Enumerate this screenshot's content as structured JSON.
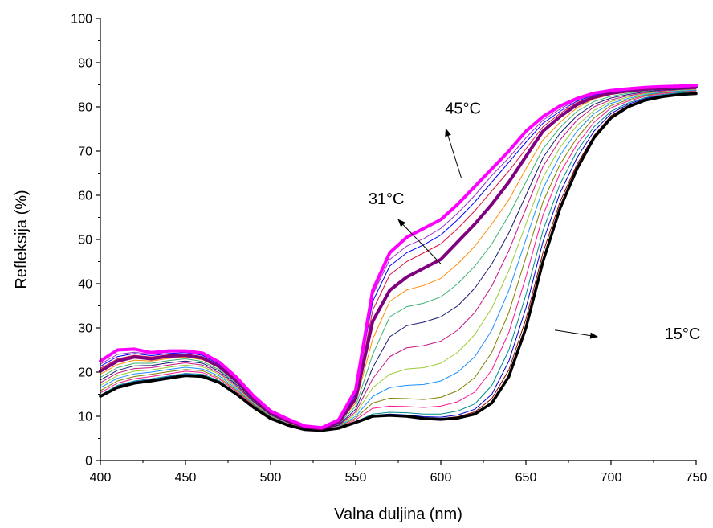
{
  "chart_data": {
    "type": "line",
    "xlabel": "Valna duljina (nm)",
    "ylabel": "Refleksija (%)",
    "xlim": [
      400,
      750
    ],
    "ylim": [
      0,
      100
    ],
    "xticks": [
      400,
      450,
      500,
      550,
      600,
      650,
      700,
      750
    ],
    "yticks": [
      0,
      10,
      20,
      30,
      40,
      50,
      60,
      70,
      80,
      90,
      100
    ],
    "grid": false,
    "legend": "none",
    "annotations": [
      {
        "text": "45°C",
        "x": 613,
        "y": 78.5,
        "arrow_from": [
          612,
          64
        ],
        "arrow_to": [
          603,
          75
        ]
      },
      {
        "text": "31°C",
        "x": 568,
        "y": 58,
        "arrow_from": [
          600,
          44.5
        ],
        "arrow_to": [
          575,
          54.5
        ]
      },
      {
        "text": "15°C",
        "x": 742,
        "y": 27.5,
        "arrow_from": [
          667,
          29.5
        ],
        "arrow_to": [
          692,
          28
        ]
      }
    ],
    "x": [
      400,
      410,
      420,
      430,
      440,
      450,
      460,
      470,
      480,
      490,
      500,
      510,
      520,
      530,
      540,
      550,
      560,
      570,
      580,
      590,
      600,
      610,
      620,
      630,
      640,
      650,
      660,
      670,
      680,
      690,
      700,
      710,
      720,
      730,
      740,
      750
    ],
    "series": [
      {
        "color": "#000000",
        "width": 3.5,
        "values": [
          14.5,
          16.5,
          17.5,
          18,
          18.6,
          19.2,
          19,
          17.6,
          15,
          12,
          9.5,
          8,
          7,
          6.8,
          7.3,
          8.6,
          10,
          10.2,
          10,
          9.5,
          9.3,
          9.6,
          10.5,
          13,
          19,
          30,
          45,
          57,
          66,
          73,
          77.5,
          80,
          81.5,
          82.3,
          82.8,
          83
        ]
      },
      {
        "color": "#8B0000",
        "width": 1,
        "values": [
          14.5,
          16.6,
          17.6,
          18.1,
          18.7,
          19.3,
          19.1,
          17.6,
          15,
          12,
          9.5,
          8,
          7,
          6.8,
          7.3,
          8.6,
          10,
          10.3,
          10.1,
          9.7,
          9.5,
          9.9,
          11,
          14,
          20.5,
          32,
          47,
          58.5,
          67,
          73.5,
          78,
          80.3,
          81.7,
          82.5,
          82.9,
          83.1
        ]
      },
      {
        "color": "#0000CD",
        "width": 1,
        "values": [
          14.6,
          16.8,
          17.8,
          18.3,
          18.9,
          19.5,
          19.3,
          17.8,
          15.2,
          12.1,
          9.6,
          8.1,
          7.1,
          6.8,
          7.3,
          8.7,
          10.2,
          10.5,
          10.3,
          9.9,
          9.8,
          10.3,
          11.6,
          15,
          22.5,
          34.5,
          49.5,
          60.5,
          68.5,
          74.5,
          78.5,
          80.6,
          81.9,
          82.6,
          83,
          83.2
        ]
      },
      {
        "color": "#008B8B",
        "width": 1,
        "values": [
          14.8,
          17,
          18,
          18.5,
          19.1,
          19.7,
          19.5,
          18,
          15.3,
          12.2,
          9.6,
          8.1,
          7.1,
          6.8,
          7.4,
          8.8,
          10.5,
          10.9,
          10.8,
          10.5,
          10.5,
          11.2,
          12.8,
          17,
          25,
          37.5,
          52,
          62.5,
          70,
          75.5,
          79,
          80.9,
          82.1,
          82.8,
          83.2,
          83.4
        ]
      },
      {
        "color": "#FF1493",
        "width": 1,
        "values": [
          15.3,
          17.5,
          18.5,
          19,
          19.6,
          20.2,
          19.9,
          18.4,
          15.6,
          12.4,
          9.8,
          8.2,
          7.2,
          6.9,
          7.5,
          9.2,
          11.8,
          12.3,
          12.2,
          12,
          12.3,
          13.3,
          15.5,
          20.5,
          29,
          41.5,
          55.5,
          65,
          71.5,
          76.5,
          79.8,
          81.3,
          82.4,
          83,
          83.4,
          83.6
        ]
      },
      {
        "color": "#808000",
        "width": 1,
        "values": [
          15.8,
          18,
          19,
          19.5,
          20.1,
          20.6,
          20.3,
          18.7,
          15.9,
          12.6,
          9.9,
          8.3,
          7.2,
          6.9,
          7.6,
          9.6,
          13,
          14.1,
          14,
          13.8,
          14.3,
          15.8,
          18.8,
          24.5,
          33.5,
          46,
          58.5,
          67,
          73,
          77.5,
          80.3,
          81.6,
          82.6,
          83.2,
          83.5,
          83.7
        ]
      },
      {
        "color": "#1E90FF",
        "width": 1,
        "values": [
          16.5,
          18.6,
          19.6,
          20,
          20.6,
          21.1,
          20.7,
          19.1,
          16.2,
          12.8,
          10.1,
          8.4,
          7.3,
          7,
          7.7,
          10,
          14.5,
          16.5,
          17,
          17.2,
          18,
          20,
          23.5,
          29.5,
          38.5,
          50,
          61.5,
          69,
          74.5,
          78.5,
          80.8,
          81.9,
          82.8,
          83.3,
          83.6,
          83.8
        ]
      },
      {
        "color": "#9ACD32",
        "width": 1,
        "values": [
          17,
          19.2,
          20.2,
          20.5,
          21.1,
          21.6,
          21.2,
          19.5,
          16.5,
          13,
          10.2,
          8.5,
          7.3,
          7,
          7.8,
          10.5,
          16.5,
          19.5,
          20.7,
          21,
          22,
          24.5,
          28.5,
          34.5,
          43,
          53.5,
          64,
          70.8,
          75.8,
          79.2,
          81.2,
          82.2,
          83,
          83.5,
          83.8,
          84
        ]
      },
      {
        "color": "#C71585",
        "width": 1,
        "values": [
          17.6,
          19.8,
          20.8,
          21,
          21.6,
          22.1,
          21.6,
          19.8,
          16.8,
          13.2,
          10.3,
          8.6,
          7.4,
          7,
          7.9,
          11,
          18.5,
          23.5,
          25.5,
          26,
          27,
          29.5,
          33.5,
          39.5,
          47.5,
          57,
          66.5,
          72.5,
          77,
          80,
          81.6,
          82.5,
          83.2,
          83.6,
          83.9,
          84.1
        ]
      },
      {
        "color": "#191970",
        "width": 1,
        "values": [
          18.2,
          20.4,
          21.4,
          21.5,
          22.1,
          22.5,
          22,
          20.2,
          17.1,
          13.4,
          10.4,
          8.7,
          7.4,
          7.1,
          8,
          11.6,
          21,
          28,
          30.5,
          31.3,
          32.5,
          35,
          39,
          44.5,
          51.5,
          60,
          68.5,
          74,
          78,
          80.6,
          82,
          82.8,
          83.4,
          83.8,
          84,
          84.2
        ]
      },
      {
        "color": "#3CB371",
        "width": 1,
        "values": [
          18.8,
          21,
          22,
          22,
          22.6,
          23,
          22.4,
          20.5,
          17.4,
          13.6,
          10.6,
          8.8,
          7.5,
          7.1,
          8.2,
          12.3,
          24,
          32.5,
          34.8,
          35.6,
          37,
          40,
          44,
          49,
          55.5,
          63,
          70.5,
          75.3,
          79,
          81.2,
          82.4,
          83.1,
          83.6,
          84,
          84.2,
          84.3
        ]
      },
      {
        "color": "#FF8C00",
        "width": 1,
        "values": [
          19.5,
          21.7,
          22.7,
          22.5,
          23.1,
          23.4,
          22.8,
          20.9,
          17.7,
          13.8,
          10.7,
          8.9,
          7.5,
          7.2,
          8.4,
          13,
          27.5,
          36,
          38.6,
          39.6,
          41.2,
          44.5,
          48.5,
          53.5,
          59,
          66,
          72.5,
          76.5,
          79.8,
          81.8,
          82.8,
          83.4,
          83.8,
          84.1,
          84.3,
          84.4
        ]
      },
      {
        "color": "#800080",
        "width": 4,
        "values": [
          20.2,
          22.5,
          23.4,
          23,
          23.6,
          23.8,
          23.2,
          21.2,
          18,
          14,
          10.8,
          9,
          7.6,
          7.2,
          8.6,
          14,
          31.5,
          38.5,
          41.5,
          43.5,
          45.5,
          49.5,
          53.5,
          58,
          63,
          68.8,
          74.5,
          77.8,
          80.5,
          82.2,
          83.1,
          83.6,
          84,
          84.2,
          84.4,
          84.5
        ]
      },
      {
        "color": "#DC143C",
        "width": 1,
        "values": [
          20.8,
          23,
          23.8,
          23.4,
          23.9,
          24.1,
          23.5,
          21.4,
          18.2,
          14.2,
          10.9,
          9.1,
          7.6,
          7.2,
          8.7,
          14.5,
          34,
          42,
          45,
          47,
          49,
          52.5,
          56.5,
          61,
          65.5,
          70.5,
          75.5,
          78.5,
          81,
          82.5,
          83.3,
          83.8,
          84.1,
          84.3,
          84.5,
          84.6
        ]
      },
      {
        "color": "#0000FF",
        "width": 1,
        "values": [
          21.3,
          23.5,
          24.2,
          23.7,
          24.2,
          24.4,
          23.8,
          21.7,
          18.4,
          14.3,
          11,
          9.2,
          7.7,
          7.3,
          8.8,
          15,
          36,
          44,
          47,
          48.8,
          51,
          54.5,
          58.5,
          63,
          67.5,
          72,
          76.3,
          79,
          81.3,
          82.7,
          83.4,
          83.9,
          84.2,
          84.4,
          84.5,
          84.7
        ]
      },
      {
        "color": "#9932CC",
        "width": 1,
        "values": [
          21.8,
          24,
          24.5,
          24,
          24.5,
          24.6,
          24,
          21.9,
          18.6,
          14.4,
          11.1,
          9.3,
          7.7,
          7.3,
          9,
          15.5,
          37.5,
          45.5,
          48.5,
          50.2,
          52.5,
          56,
          60,
          64.5,
          68.5,
          73,
          77,
          79.5,
          81.6,
          82.9,
          83.6,
          84,
          84.3,
          84.5,
          84.6,
          84.8
        ]
      },
      {
        "color": "#FF00FF",
        "width": 4,
        "values": [
          22.5,
          25,
          25.2,
          24.4,
          24.8,
          24.8,
          24.3,
          22.2,
          18.8,
          14.6,
          11.2,
          9.4,
          7.8,
          7.4,
          9.2,
          16,
          38.5,
          47,
          50.5,
          52.5,
          54.5,
          58,
          62,
          66,
          70,
          74.5,
          77.8,
          80.2,
          81.9,
          83.1,
          83.7,
          84.1,
          84.4,
          84.6,
          84.7,
          84.9
        ]
      }
    ]
  }
}
